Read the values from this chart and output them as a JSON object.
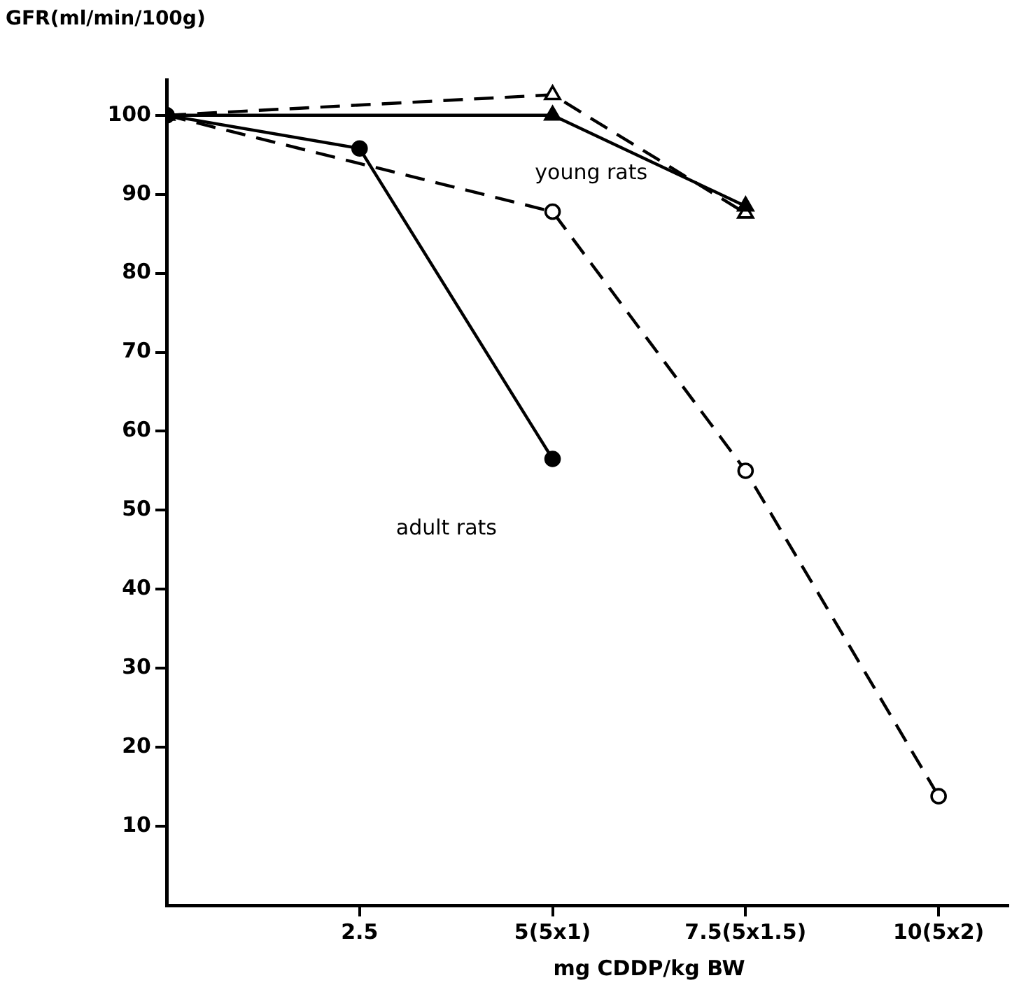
{
  "chart_data": {
    "type": "line",
    "ylabel": "GFR(ml/min/100g)",
    "xlabel": "mg CDDP/kg BW",
    "categories": [
      null,
      "2.5",
      "5(5x1)",
      "7.5(5x1.5)",
      "10(5x2)"
    ],
    "ylim": [
      0,
      104.5
    ],
    "yticks": [
      10,
      20,
      30,
      40,
      50,
      60,
      70,
      80,
      90,
      100
    ],
    "grid": false,
    "legend": false,
    "series": [
      {
        "color": "#000000",
        "values": [
          100,
          95.8,
          56.5,
          null,
          null
        ],
        "marker": "circle",
        "line_style": "solid"
      },
      {
        "color": "#000000",
        "values": [
          100,
          null,
          87.8,
          55,
          13.8
        ],
        "marker": "circle",
        "line_style": "dashed"
      },
      {
        "color": "#000000",
        "values": [
          100,
          null,
          100,
          88.5,
          null
        ],
        "marker": "triangle",
        "line_style": "solid"
      },
      {
        "color": "#000000",
        "values": [
          100,
          null,
          102.6,
          87.6,
          null
        ],
        "marker": "triangle",
        "line_style": "dashed"
      }
    ],
    "annotations": [
      "young rats",
      "adult rats"
    ]
  }
}
